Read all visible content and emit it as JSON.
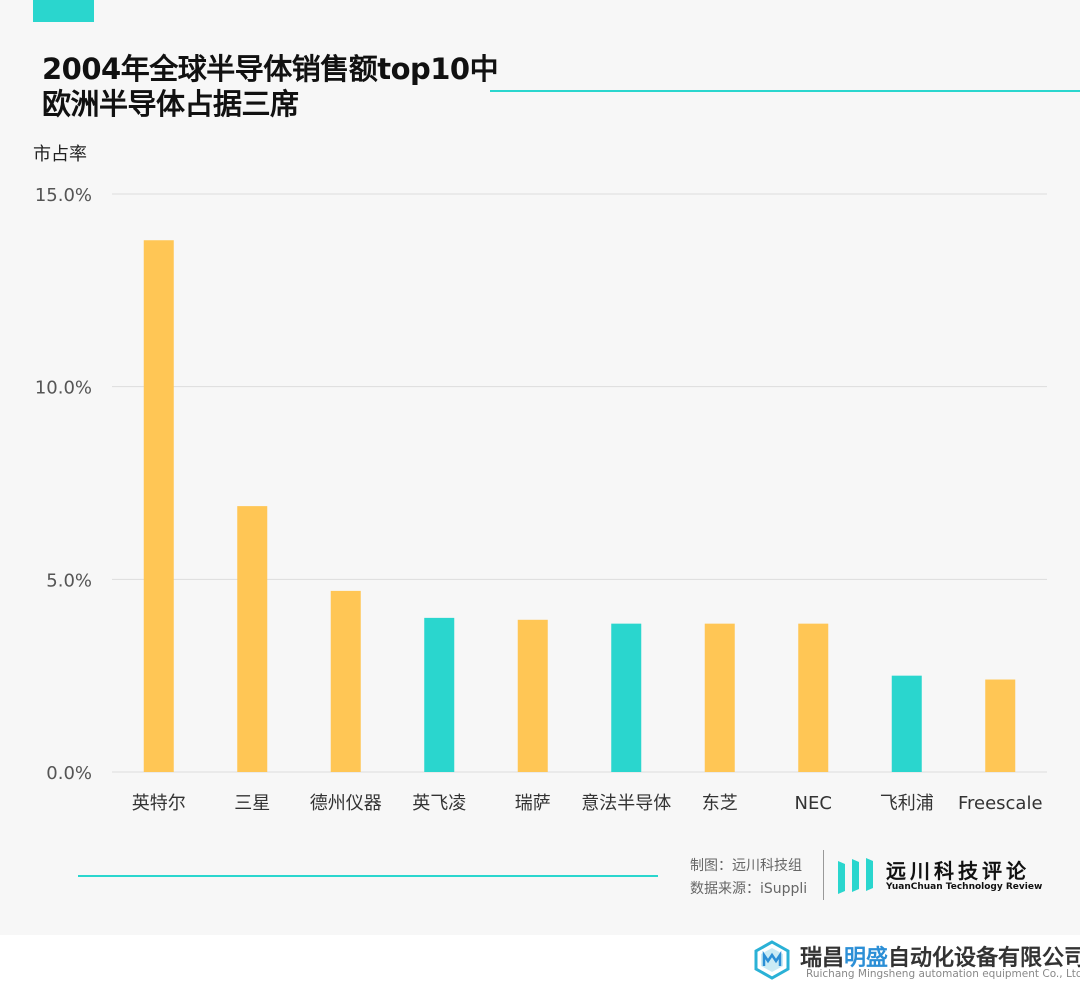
{
  "colors": {
    "orange": "#FFC655",
    "teal": "#2AD6CE",
    "grid": "#dddddd"
  },
  "title": {
    "line1": "2004年全球半导体销售额top10中",
    "line2": "欧洲半导体占据三席"
  },
  "chart_data": {
    "type": "bar",
    "title": "2004年全球半导体销售额top10中欧洲半导体占据三席",
    "ylabel": "市占率",
    "xlabel": "",
    "ylim": [
      0,
      15
    ],
    "yticks": [
      0,
      5,
      10,
      15
    ],
    "ytick_labels": [
      "0.0%",
      "5.0%",
      "10.0%",
      "15.0%"
    ],
    "grid": true,
    "categories": [
      "英特尔",
      "三星",
      "德州仪器",
      "英飞凌",
      "瑞萨",
      "意法半导体",
      "东芝",
      "NEC",
      "飞利浦",
      "Freescale"
    ],
    "values": [
      13.8,
      6.9,
      4.7,
      4.0,
      3.95,
      3.85,
      3.85,
      3.85,
      2.5,
      2.4
    ],
    "bar_colors": [
      "#FFC655",
      "#FFC655",
      "#FFC655",
      "#2AD6CE",
      "#FFC655",
      "#2AD6CE",
      "#FFC655",
      "#FFC655",
      "#2AD6CE",
      "#FFC655"
    ]
  },
  "footer": {
    "credit_made": "制图：远川科技组",
    "credit_source": "数据来源：iSuppli",
    "brand_cn": "远川科技评论",
    "brand_en": "YuanChuan Technology Review"
  },
  "watermark": {
    "cn_prefix": "瑞昌",
    "cn_highlight": "明盛",
    "cn_suffix": "自动化设备有限公司",
    "en": "Ruichang Mingsheng automation equipment Co., Ltd",
    "highlight_color": "#2C8FD6"
  }
}
